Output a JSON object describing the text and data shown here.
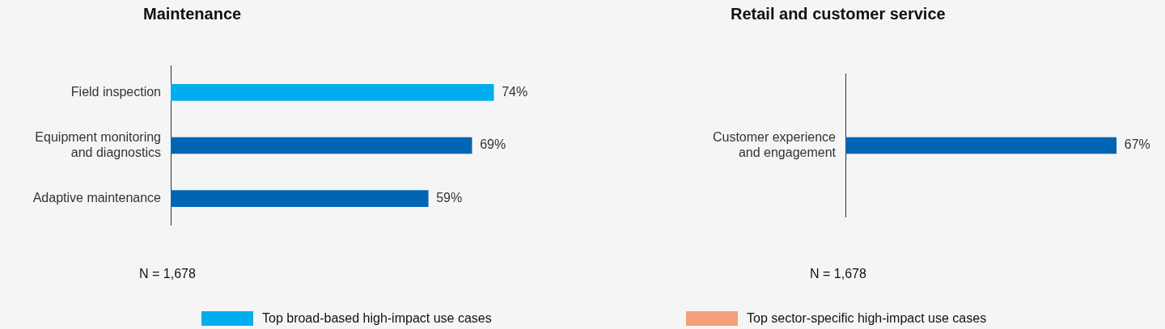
{
  "chart_data": [
    {
      "type": "bar",
      "orientation": "horizontal",
      "title": "Maintenance",
      "categories": [
        "Field inspection",
        "Equipment monitoring and diagnostics",
        "Adaptive maintenance"
      ],
      "series": [
        {
          "name": "Top broad-based high-impact use cases",
          "color": "#00aeef",
          "values": [
            74,
            null,
            null
          ],
          "value_labels": [
            "74%",
            null,
            null
          ]
        },
        {
          "color": "#0066b3",
          "values": [
            null,
            69,
            59
          ],
          "value_labels": [
            null,
            "69%",
            "59%"
          ]
        }
      ],
      "annotations": [
        "N = 1,678"
      ],
      "legend": "bottom"
    },
    {
      "type": "bar",
      "orientation": "horizontal",
      "title": "Retail and customer service",
      "categories": [
        "Customer experience and engagement"
      ],
      "series": [
        {
          "color": "#0066b3",
          "values": [
            67
          ],
          "value_labels": [
            "67%"
          ]
        },
        {
          "name": "Top sector-specific high-impact use cases",
          "color": "#f4a07b",
          "values": [
            null
          ],
          "value_labels": [
            null
          ]
        }
      ],
      "annotations": [
        "N = 1,678"
      ],
      "legend": "bottom"
    }
  ]
}
